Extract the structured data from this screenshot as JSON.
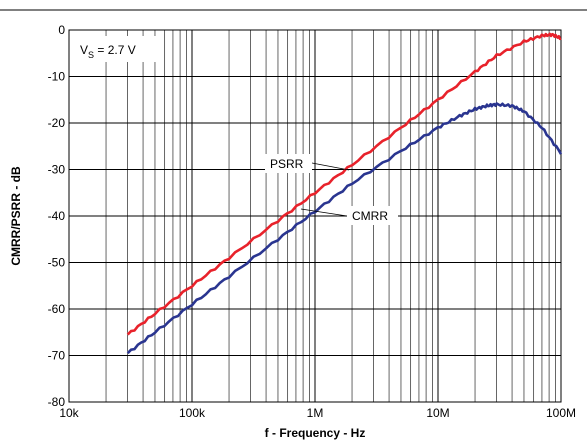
{
  "chart_data": {
    "type": "line",
    "xscale": "log",
    "xlim": [
      10000,
      100000000
    ],
    "ylim": [
      -80,
      0
    ],
    "xlabel": "f - Frequency - Hz",
    "ylabel": "CMRR/PSRR - dB",
    "x_ticks": [
      {
        "value": 10000,
        "label": "10k"
      },
      {
        "value": 100000,
        "label": "100k"
      },
      {
        "value": 1000000,
        "label": "1M"
      },
      {
        "value": 10000000,
        "label": "10M"
      },
      {
        "value": 100000000,
        "label": "100M"
      }
    ],
    "y_ticks": [
      {
        "value": 0,
        "label": "0"
      },
      {
        "value": -10,
        "label": "-10"
      },
      {
        "value": -20,
        "label": "-20"
      },
      {
        "value": -30,
        "label": "-30"
      },
      {
        "value": -40,
        "label": "-40"
      },
      {
        "value": -50,
        "label": "-50"
      },
      {
        "value": -60,
        "label": "-60"
      },
      {
        "value": -70,
        "label": "-70"
      },
      {
        "value": -80,
        "label": "-80"
      }
    ],
    "grid": true,
    "condition": {
      "text": "V",
      "subscript": "S",
      "value": " = 2.7 V"
    },
    "series": [
      {
        "name": "PSRR",
        "color": "#e8222b",
        "points": [
          [
            30000,
            -65.5
          ],
          [
            50000,
            -61
          ],
          [
            100000,
            -55
          ],
          [
            200000,
            -49
          ],
          [
            500000,
            -41
          ],
          [
            1000000,
            -35
          ],
          [
            2000000,
            -29
          ],
          [
            5000000,
            -21
          ],
          [
            10000000,
            -15
          ],
          [
            20000000,
            -9
          ],
          [
            30000000,
            -5.5
          ],
          [
            50000000,
            -2.5
          ],
          [
            70000000,
            -1.2
          ],
          [
            85000000,
            -1
          ],
          [
            100000000,
            -1.8
          ]
        ]
      },
      {
        "name": "CMRR",
        "color": "#2a3590",
        "points": [
          [
            30000,
            -69.5
          ],
          [
            50000,
            -65
          ],
          [
            100000,
            -59
          ],
          [
            200000,
            -53
          ],
          [
            500000,
            -45
          ],
          [
            1000000,
            -39
          ],
          [
            2000000,
            -33
          ],
          [
            5000000,
            -26
          ],
          [
            10000000,
            -21
          ],
          [
            15000000,
            -18.5
          ],
          [
            20000000,
            -17
          ],
          [
            25000000,
            -16.3
          ],
          [
            30000000,
            -16
          ],
          [
            40000000,
            -16.3
          ],
          [
            50000000,
            -17.5
          ],
          [
            70000000,
            -21
          ],
          [
            100000000,
            -26.5
          ]
        ]
      }
    ]
  }
}
